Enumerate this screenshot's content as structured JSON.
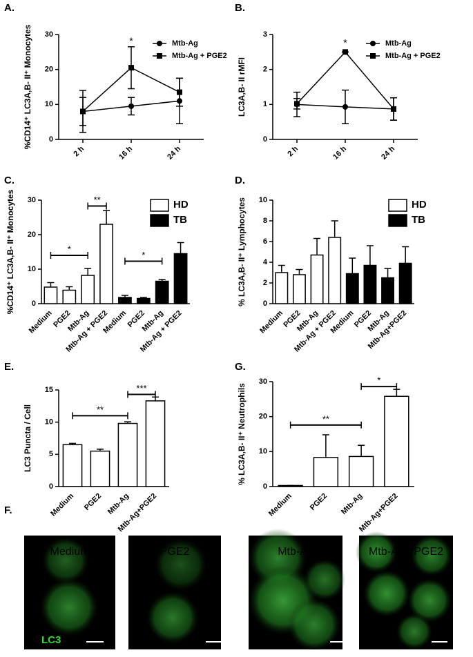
{
  "chart_data": [
    {
      "type": "line",
      "panel": "A.",
      "ylabel": "%CD14⁺ LC3A,B- II⁺ Monocytes",
      "categories": [
        "2 h",
        "16 h",
        "24 h"
      ],
      "ylim": [
        0,
        30
      ],
      "yticks": [
        0,
        10,
        20,
        30
      ],
      "legend": true,
      "series": [
        {
          "name": "Mtb-Ag",
          "marker": "circle",
          "color": "#000",
          "values": [
            8,
            9.5,
            11
          ],
          "errors": [
            6,
            2.5,
            6.5
          ]
        },
        {
          "name": "Mtb-Ag + PGE2",
          "marker": "square",
          "color": "#000",
          "values": [
            8,
            20.5,
            13.5
          ],
          "errors": [
            4,
            6,
            4
          ]
        }
      ],
      "annotations": [
        "*"
      ]
    },
    {
      "type": "line",
      "panel": "B.",
      "ylabel": "LC3A,B- II rMFI",
      "categories": [
        "2 h",
        "16 h",
        "24 h"
      ],
      "ylim": [
        0,
        3
      ],
      "yticks": [
        0,
        1,
        2,
        3
      ],
      "legend": true,
      "series": [
        {
          "name": "Mtb-Ag",
          "marker": "circle",
          "color": "#000",
          "values": [
            1,
            0.93,
            0.87
          ],
          "errors": [
            0.35,
            0.48,
            0.32
          ]
        },
        {
          "name": "Mtb-Ag + PGE2",
          "marker": "square",
          "color": "#000",
          "values": [
            1.02,
            2.5,
            0.87
          ],
          "errors": [
            0.15,
            0,
            0.32
          ]
        }
      ],
      "annotations": [
        "*"
      ]
    },
    {
      "type": "bar",
      "panel": "C.",
      "ylabel": "%CD14⁺ LC3A,B- II⁺ Monocytes",
      "categories": [
        "Medium",
        "PGE2",
        "Mtb-Ag",
        "Mtb-Ag + PGE2",
        "Medium",
        "PGE2",
        "Mtb-Ag",
        "Mtb-Ag + PGE2"
      ],
      "ylim": [
        0,
        30
      ],
      "yticks": [
        0,
        10,
        20,
        30
      ],
      "legend": true,
      "series": [
        {
          "name": "HD",
          "color": "#ffffff",
          "values": [
            4.8,
            3.9,
            8.2,
            23,
            null,
            null,
            null,
            null
          ],
          "errors": [
            1.3,
            1,
            2,
            4,
            null,
            null,
            null,
            null
          ]
        },
        {
          "name": "TB",
          "color": "#000000",
          "values": [
            null,
            null,
            null,
            null,
            1.8,
            1.5,
            6.5,
            14.5
          ],
          "errors": [
            null,
            null,
            null,
            null,
            0.6,
            0.3,
            0.5,
            3.2
          ]
        }
      ],
      "annotations": [
        "*",
        "**",
        "*"
      ]
    },
    {
      "type": "bar",
      "panel": "D.",
      "ylabel": "% LC3A,B- II⁺ Lymphocytes",
      "categories": [
        "Medium",
        "PGE2",
        "Mtb-Ag",
        "Mtb-Ag + PGE2",
        "Medium",
        "PGE2",
        "Mtb-Ag",
        "Mtb-Ag+PGE2"
      ],
      "ylim": [
        0,
        10
      ],
      "yticks": [
        0,
        2,
        4,
        6,
        8,
        10
      ],
      "legend": true,
      "series": [
        {
          "name": "HD",
          "color": "#ffffff",
          "values": [
            3,
            2.8,
            4.7,
            6.4,
            null,
            null,
            null,
            null
          ],
          "errors": [
            0.7,
            0.5,
            1.6,
            1.6,
            null,
            null,
            null,
            null
          ]
        },
        {
          "name": "TB",
          "color": "#000000",
          "values": [
            null,
            null,
            null,
            null,
            2.9,
            3.7,
            2.5,
            3.9
          ],
          "errors": [
            null,
            null,
            null,
            null,
            1.5,
            1.9,
            0.9,
            1.6
          ]
        }
      ],
      "annotations": []
    },
    {
      "type": "bar",
      "panel": "E.",
      "ylabel": "LC3 Puncta / Cell",
      "categories": [
        "Medium",
        "PGE2",
        "Mtb-Ag",
        "Mtb-Ag+PGE2"
      ],
      "ylim": [
        0,
        15
      ],
      "yticks": [
        0,
        5,
        10,
        15
      ],
      "legend": false,
      "series": [
        {
          "color": "#ffffff",
          "values": [
            6.5,
            5.5,
            9.8,
            13.3
          ],
          "errors": [
            0.2,
            0.3,
            0.25,
            0.6
          ]
        }
      ],
      "annotations": [
        "**",
        "***"
      ]
    },
    {
      "type": "bar",
      "panel": "G.",
      "ylabel": "% LC3A,B- II⁺ Neutrophils",
      "categories": [
        "Medium",
        "PGE2",
        "Mtb-Ag",
        "Mtb-Ag+PGE2"
      ],
      "ylim": [
        0,
        30
      ],
      "yticks": [
        0,
        10,
        20,
        30
      ],
      "legend": false,
      "series": [
        {
          "color": "#ffffff",
          "values": [
            0.3,
            8.3,
            8.6,
            25.8
          ],
          "errors": [
            0,
            6.5,
            3.2,
            2
          ]
        }
      ],
      "annotations": [
        "**",
        "*"
      ]
    }
  ],
  "figure_f": {
    "panel": "F.",
    "titles": [
      "Medium",
      "PGE2",
      "Mtb-Ag",
      "Mtb-Ag+ PGE2"
    ],
    "channel": "LC3"
  }
}
